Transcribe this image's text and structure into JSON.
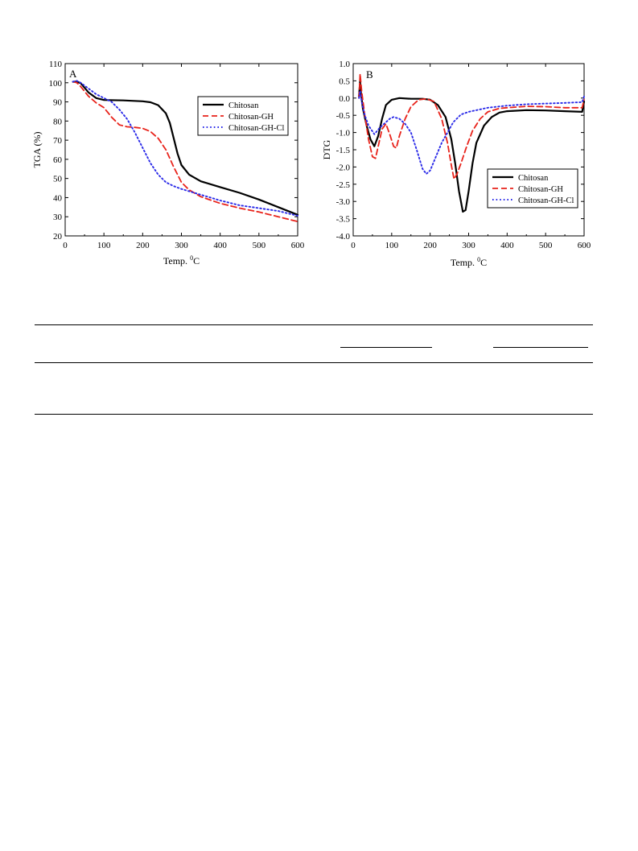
{
  "chart_data": [
    {
      "panel": "A",
      "type": "line",
      "xlabel": "Temp. ",
      "xlabel_sup": "0",
      "xlabel_unit": "C",
      "ylabel": "TGA (%)",
      "xlim": [
        0,
        600
      ],
      "ylim": [
        20,
        110
      ],
      "xticks": [
        0,
        100,
        200,
        300,
        400,
        500,
        600
      ],
      "yticks": [
        20,
        30,
        40,
        50,
        60,
        70,
        80,
        90,
        100,
        110
      ],
      "legend_position": "top-right",
      "grid": false,
      "series": [
        {
          "name": "Chitosan",
          "color": "#000000",
          "dash": "solid",
          "points": [
            [
              20,
              100.5
            ],
            [
              30,
              100.6
            ],
            [
              40,
              99.8
            ],
            [
              60,
              95
            ],
            [
              80,
              92
            ],
            [
              100,
              91
            ],
            [
              150,
              90.8
            ],
            [
              200,
              90.3
            ],
            [
              220,
              89.8
            ],
            [
              240,
              88.3
            ],
            [
              260,
              84
            ],
            [
              270,
              79
            ],
            [
              280,
              71
            ],
            [
              290,
              63
            ],
            [
              300,
              57
            ],
            [
              320,
              52
            ],
            [
              350,
              48.5
            ],
            [
              400,
              45.5
            ],
            [
              450,
              42.5
            ],
            [
              500,
              39
            ],
            [
              550,
              35
            ],
            [
              600,
              31
            ]
          ]
        },
        {
          "name": "Chitosan-GH",
          "color": "#e8221a",
          "dash": "dashed",
          "points": [
            [
              20,
              100.6
            ],
            [
              30,
              100
            ],
            [
              40,
              98
            ],
            [
              60,
              93
            ],
            [
              80,
              89.5
            ],
            [
              100,
              87
            ],
            [
              120,
              82
            ],
            [
              140,
              78
            ],
            [
              160,
              77
            ],
            [
              180,
              76.7
            ],
            [
              200,
              76.2
            ],
            [
              220,
              74.5
            ],
            [
              240,
              71
            ],
            [
              260,
              65
            ],
            [
              280,
              56
            ],
            [
              300,
              48
            ],
            [
              320,
              44
            ],
            [
              350,
              40.5
            ],
            [
              400,
              37
            ],
            [
              450,
              34.5
            ],
            [
              500,
              32.5
            ],
            [
              550,
              30
            ],
            [
              600,
              27.5
            ]
          ]
        },
        {
          "name": "Chitosan-GH-Cl",
          "color": "#2a2ae8",
          "dash": "dotted",
          "points": [
            [
              20,
              100.6
            ],
            [
              30,
              101
            ],
            [
              40,
              100
            ],
            [
              60,
              97
            ],
            [
              80,
              94
            ],
            [
              100,
              92
            ],
            [
              120,
              90
            ],
            [
              140,
              86
            ],
            [
              160,
              81
            ],
            [
              180,
              74
            ],
            [
              200,
              66
            ],
            [
              220,
              58
            ],
            [
              240,
              52
            ],
            [
              260,
              48
            ],
            [
              280,
              46
            ],
            [
              300,
              44.5
            ],
            [
              350,
              41.5
            ],
            [
              400,
              38.5
            ],
            [
              450,
              36
            ],
            [
              500,
              34.5
            ],
            [
              550,
              33
            ],
            [
              600,
              30.5
            ]
          ]
        }
      ]
    },
    {
      "panel": "B",
      "type": "line",
      "xlabel": "Temp. ",
      "xlabel_sup": "0",
      "xlabel_unit": "C",
      "ylabel": "DTG",
      "xlim": [
        0,
        600
      ],
      "ylim": [
        -4.0,
        1.0
      ],
      "xticks": [
        0,
        100,
        200,
        300,
        400,
        500,
        600
      ],
      "yticks": [
        "-4.0",
        "-3.5",
        "-3.0",
        "-2.5",
        "-2.0",
        "-1.5",
        "-1.0",
        "-0.5",
        "0.0",
        "0.5",
        "1.0"
      ],
      "legend_position": "bottom-right",
      "grid": false,
      "series": [
        {
          "name": "Chitosan",
          "color": "#000000",
          "dash": "solid",
          "points": [
            [
              15,
              0.05
            ],
            [
              18,
              0.5
            ],
            [
              20,
              0.15
            ],
            [
              25,
              -0.3
            ],
            [
              35,
              -0.8
            ],
            [
              45,
              -1.2
            ],
            [
              55,
              -1.4
            ],
            [
              65,
              -1.1
            ],
            [
              75,
              -0.6
            ],
            [
              85,
              -0.2
            ],
            [
              100,
              -0.05
            ],
            [
              120,
              0.0
            ],
            [
              150,
              -0.02
            ],
            [
              180,
              -0.02
            ],
            [
              200,
              -0.05
            ],
            [
              220,
              -0.2
            ],
            [
              240,
              -0.55
            ],
            [
              255,
              -1.2
            ],
            [
              265,
              -1.9
            ],
            [
              275,
              -2.7
            ],
            [
              285,
              -3.3
            ],
            [
              292,
              -3.25
            ],
            [
              300,
              -2.7
            ],
            [
              310,
              -1.9
            ],
            [
              320,
              -1.3
            ],
            [
              340,
              -0.8
            ],
            [
              360,
              -0.55
            ],
            [
              380,
              -0.42
            ],
            [
              400,
              -0.38
            ],
            [
              450,
              -0.35
            ],
            [
              500,
              -0.36
            ],
            [
              550,
              -0.38
            ],
            [
              595,
              -0.4
            ],
            [
              600,
              -0.1
            ]
          ]
        },
        {
          "name": "Chitosan-GH",
          "color": "#e8221a",
          "dash": "dashed",
          "points": [
            [
              15,
              0.0
            ],
            [
              18,
              0.7
            ],
            [
              22,
              0.2
            ],
            [
              30,
              -0.5
            ],
            [
              40,
              -1.2
            ],
            [
              50,
              -1.7
            ],
            [
              58,
              -1.75
            ],
            [
              65,
              -1.4
            ],
            [
              75,
              -0.9
            ],
            [
              85,
              -0.75
            ],
            [
              95,
              -1.05
            ],
            [
              105,
              -1.4
            ],
            [
              112,
              -1.45
            ],
            [
              120,
              -1.1
            ],
            [
              135,
              -0.6
            ],
            [
              150,
              -0.25
            ],
            [
              170,
              -0.05
            ],
            [
              190,
              -0.02
            ],
            [
              210,
              -0.1
            ],
            [
              230,
              -0.6
            ],
            [
              245,
              -1.3
            ],
            [
              255,
              -1.95
            ],
            [
              262,
              -2.35
            ],
            [
              270,
              -2.2
            ],
            [
              280,
              -1.9
            ],
            [
              295,
              -1.4
            ],
            [
              310,
              -0.95
            ],
            [
              330,
              -0.6
            ],
            [
              350,
              -0.4
            ],
            [
              380,
              -0.3
            ],
            [
              400,
              -0.28
            ],
            [
              450,
              -0.24
            ],
            [
              500,
              -0.25
            ],
            [
              550,
              -0.28
            ],
            [
              595,
              -0.28
            ],
            [
              600,
              -0.05
            ]
          ]
        },
        {
          "name": "Chitosan-GH-Cl",
          "color": "#2a2ae8",
          "dash": "dotted",
          "points": [
            [
              15,
              0.0
            ],
            [
              18,
              0.2
            ],
            [
              22,
              -0.1
            ],
            [
              30,
              -0.5
            ],
            [
              40,
              -0.8
            ],
            [
              55,
              -1.05
            ],
            [
              70,
              -0.85
            ],
            [
              85,
              -0.7
            ],
            [
              95,
              -0.6
            ],
            [
              105,
              -0.55
            ],
            [
              120,
              -0.6
            ],
            [
              135,
              -0.75
            ],
            [
              150,
              -1.0
            ],
            [
              165,
              -1.5
            ],
            [
              180,
              -2.05
            ],
            [
              190,
              -2.2
            ],
            [
              200,
              -2.1
            ],
            [
              215,
              -1.7
            ],
            [
              230,
              -1.3
            ],
            [
              245,
              -1.0
            ],
            [
              260,
              -0.7
            ],
            [
              280,
              -0.48
            ],
            [
              300,
              -0.4
            ],
            [
              350,
              -0.28
            ],
            [
              400,
              -0.22
            ],
            [
              450,
              -0.18
            ],
            [
              500,
              -0.16
            ],
            [
              550,
              -0.14
            ],
            [
              595,
              -0.12
            ],
            [
              600,
              0.05
            ]
          ]
        }
      ]
    }
  ]
}
